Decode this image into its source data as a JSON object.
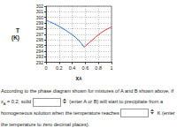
{
  "chart_data": {
    "type": "line",
    "xlabel": {
      "main": "x",
      "sub": "A"
    },
    "ylabel": [
      "T",
      "(K)"
    ],
    "series": [
      {
        "color": "#1f6fd1",
        "x": [
          0,
          0.1,
          0.2,
          0.3,
          0.4,
          0.5,
          0.58
        ],
        "values": [
          299.5,
          299.0,
          298.4,
          297.7,
          296.9,
          295.9,
          294.7
        ]
      },
      {
        "color": "#e0302a",
        "x": [
          0.58,
          0.7,
          0.8,
          0.9,
          1
        ],
        "values": [
          294.7,
          295.9,
          296.9,
          297.7,
          298.3
        ]
      }
    ],
    "xlim": [
      0,
      1
    ],
    "xticks": [
      0,
      0.2,
      0.4,
      0.6,
      0.8,
      1
    ],
    "ylim": [
      292,
      302
    ],
    "yticks": [
      292,
      293,
      294,
      295,
      296,
      297,
      298,
      299,
      300,
      301,
      302
    ],
    "grid": true
  },
  "question": {
    "parts": [
      {
        "text": "According to the phase diagram shown for mixtures of A and B shown above, if x"
      },
      {
        "sub": "A"
      },
      {
        "text": " = 0.2, solid "
      },
      {
        "input": true
      },
      {
        "text": " (enter A or B) will start to precipitate from a homogeneous solution when the temperature reaches "
      },
      {
        "input": true
      },
      {
        "text": " K (enter the temperature to zero decimal places)."
      }
    ]
  }
}
